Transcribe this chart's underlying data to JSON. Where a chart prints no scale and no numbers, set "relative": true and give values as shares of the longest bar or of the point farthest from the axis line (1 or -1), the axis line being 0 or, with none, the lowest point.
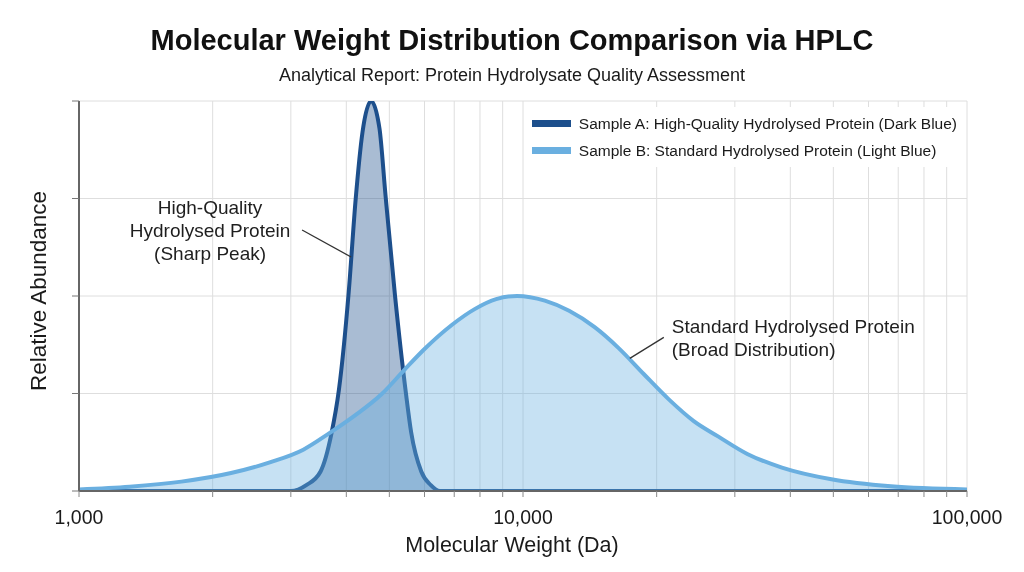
{
  "chart_data": {
    "type": "area",
    "title": "Molecular Weight Distribution Comparison via HPLC",
    "subtitle": "Analytical Report: Protein Hydrolysate Quality Assessment",
    "xlabel": "Molecular Weight (Da)",
    "ylabel": "Relative Abundance",
    "log": "x",
    "relative": true,
    "grid": true,
    "legend": "top right",
    "marker": "none",
    "xlim": [
      1000,
      100000
    ],
    "xticks": [
      {
        "value": 1000,
        "label": "1,000"
      },
      {
        "value": 2000,
        "label": null
      },
      {
        "value": 3000,
        "label": null
      },
      {
        "value": 4000,
        "label": null
      },
      {
        "value": 5000,
        "label": null
      },
      {
        "value": 6000,
        "label": null
      },
      {
        "value": 7000,
        "label": null
      },
      {
        "value": 8000,
        "label": null
      },
      {
        "value": 9000,
        "label": null
      },
      {
        "value": 10000,
        "label": "10,000"
      },
      {
        "value": 20000,
        "label": null
      },
      {
        "value": 30000,
        "label": null
      },
      {
        "value": 40000,
        "label": null
      },
      {
        "value": 50000,
        "label": null
      },
      {
        "value": 60000,
        "label": null
      },
      {
        "value": 70000,
        "label": null
      },
      {
        "value": 80000,
        "label": null
      },
      {
        "value": 90000,
        "label": null
      },
      {
        "value": 100000,
        "label": "100,000"
      }
    ],
    "series": [
      {
        "name": "Sample A: High-Quality Hydrolysed Protein (Dark Blue)",
        "color": "#1d4f8c",
        "x": [
          1000,
          2000,
          3000,
          3250,
          3500,
          3700,
          3850,
          4050,
          4200,
          4350,
          4550,
          4750,
          4900,
          5150,
          5450,
          5600,
          5900,
          6200,
          6500,
          10000,
          100000
        ],
        "values": [
          0,
          0,
          0,
          0.015,
          0.05,
          0.145,
          0.26,
          0.51,
          0.75,
          0.92,
          1,
          0.93,
          0.76,
          0.5,
          0.25,
          0.15,
          0.05,
          0.015,
          0,
          0,
          0
        ]
      },
      {
        "name": "Sample B: Standard Hydrolysed Protein (Light Blue)",
        "color": "#6aafe0",
        "x": [
          1000,
          1300,
          1700,
          2200,
          2700,
          3200,
          3650,
          4200,
          4800,
          5400,
          6000,
          6900,
          7800,
          8700,
          9700,
          11200,
          12700,
          14500,
          16400,
          18700,
          21300,
          24200,
          27500,
          32000,
          38300,
          49500,
          67400,
          100000
        ],
        "values": [
          0.004,
          0.011,
          0.024,
          0.046,
          0.074,
          0.106,
          0.147,
          0.195,
          0.248,
          0.31,
          0.364,
          0.425,
          0.467,
          0.492,
          0.5,
          0.488,
          0.462,
          0.42,
          0.367,
          0.3,
          0.235,
          0.18,
          0.14,
          0.095,
          0.06,
          0.03,
          0.012,
          0.004
        ]
      }
    ],
    "annotations": [
      {
        "text": "High-Quality\nHydrolysed Protein\n(Sharp Peak)",
        "x": 4100,
        "y": 0.6
      },
      {
        "text": "Standard Hydrolysed Protein\n(Broad Distribution)",
        "x": 17400,
        "y": 0.34
      }
    ]
  }
}
